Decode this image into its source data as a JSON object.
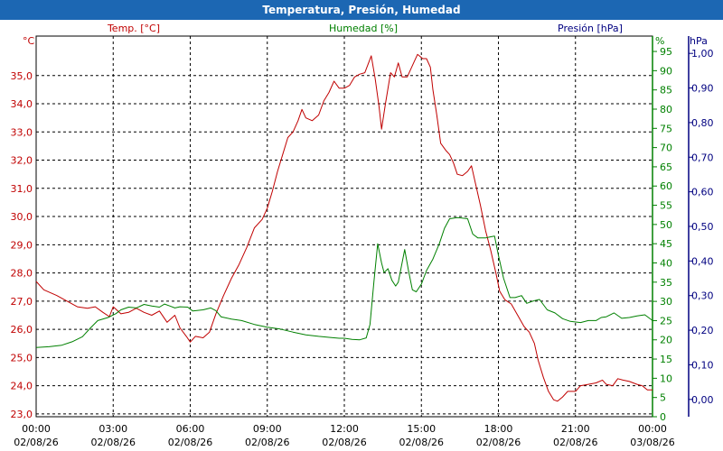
{
  "window": {
    "title": "Temperatura, Presión, Humedad"
  },
  "chart_data": {
    "type": "line",
    "title": "Temperatura, Presión, Humedad",
    "x_ticks": [
      {
        "time": "00:00",
        "date": "02/08/26"
      },
      {
        "time": "03:00",
        "date": "02/08/26"
      },
      {
        "time": "06:00",
        "date": "02/08/26"
      },
      {
        "time": "09:00",
        "date": "02/08/26"
      },
      {
        "time": "12:00",
        "date": "02/08/26"
      },
      {
        "time": "15:00",
        "date": "02/08/26"
      },
      {
        "time": "18:00",
        "date": "02/08/26"
      },
      {
        "time": "21:00",
        "date": "02/08/26"
      },
      {
        "time": "00:00",
        "date": "03/08/26"
      }
    ],
    "x_range_hours": [
      0,
      24
    ],
    "grid": true,
    "axes": {
      "temp": {
        "label": "Temp. [°C]",
        "unit": "°C",
        "range": [
          22.9,
          36.4
        ],
        "ticks": [
          "23,0",
          "24,0",
          "25,0",
          "26,0",
          "27,0",
          "28,0",
          "29,0",
          "30,0",
          "31,0",
          "32,0",
          "33,0",
          "34,0",
          "35,0"
        ],
        "color": "#c00000"
      },
      "hum": {
        "label": "Humedad [%]",
        "unit": "%",
        "range": [
          0,
          99
        ],
        "ticks": [
          "0",
          "5",
          "10",
          "15",
          "20",
          "25",
          "30",
          "35",
          "40",
          "45",
          "50",
          "55",
          "60",
          "65",
          "70",
          "75",
          "80",
          "85",
          "90",
          "95"
        ],
        "color": "#008000"
      },
      "pres": {
        "label": "Presión [hPa]",
        "unit": "hPa",
        "range": [
          -0.05,
          1.05
        ],
        "ticks": [
          "0,00",
          "0,10",
          "0,20",
          "0,30",
          "0,40",
          "0,50",
          "0,60",
          "0,70",
          "0,80",
          "0,90",
          "1,00"
        ],
        "color": "#000080"
      }
    },
    "series": [
      {
        "name": "Temp. [°C]",
        "axis": "temp",
        "color": "#c00000",
        "points": [
          [
            0,
            27.7
          ],
          [
            0.3,
            27.4
          ],
          [
            0.8,
            27.2
          ],
          [
            1.2,
            27.0
          ],
          [
            1.6,
            26.8
          ],
          [
            2.0,
            26.75
          ],
          [
            2.3,
            26.8
          ],
          [
            2.6,
            26.6
          ],
          [
            2.85,
            26.45
          ],
          [
            3.0,
            26.8
          ],
          [
            3.3,
            26.55
          ],
          [
            3.6,
            26.6
          ],
          [
            3.9,
            26.75
          ],
          [
            4.2,
            26.6
          ],
          [
            4.5,
            26.5
          ],
          [
            4.8,
            26.65
          ],
          [
            5.1,
            26.25
          ],
          [
            5.4,
            26.5
          ],
          [
            5.6,
            26.05
          ],
          [
            5.85,
            25.75
          ],
          [
            6.0,
            25.55
          ],
          [
            6.2,
            25.75
          ],
          [
            6.5,
            25.7
          ],
          [
            6.75,
            25.9
          ],
          [
            7.0,
            26.55
          ],
          [
            7.3,
            27.2
          ],
          [
            7.6,
            27.8
          ],
          [
            7.9,
            28.3
          ],
          [
            8.2,
            28.9
          ],
          [
            8.5,
            29.6
          ],
          [
            8.8,
            29.9
          ],
          [
            9.0,
            30.3
          ],
          [
            9.2,
            30.9
          ],
          [
            9.4,
            31.6
          ],
          [
            9.6,
            32.2
          ],
          [
            9.8,
            32.8
          ],
          [
            10.0,
            33.0
          ],
          [
            10.2,
            33.4
          ],
          [
            10.35,
            33.8
          ],
          [
            10.5,
            33.5
          ],
          [
            10.75,
            33.4
          ],
          [
            11.0,
            33.6
          ],
          [
            11.2,
            34.1
          ],
          [
            11.4,
            34.4
          ],
          [
            11.6,
            34.8
          ],
          [
            11.8,
            34.55
          ],
          [
            12.0,
            34.55
          ],
          [
            12.2,
            34.65
          ],
          [
            12.4,
            34.95
          ],
          [
            12.6,
            35.05
          ],
          [
            12.8,
            35.1
          ],
          [
            13.05,
            35.7
          ],
          [
            13.2,
            34.9
          ],
          [
            13.35,
            33.9
          ],
          [
            13.45,
            33.1
          ],
          [
            13.6,
            34.0
          ],
          [
            13.8,
            35.1
          ],
          [
            13.95,
            34.95
          ],
          [
            14.1,
            35.45
          ],
          [
            14.25,
            34.95
          ],
          [
            14.45,
            34.95
          ],
          [
            14.7,
            35.45
          ],
          [
            14.85,
            35.75
          ],
          [
            15.05,
            35.6
          ],
          [
            15.2,
            35.6
          ],
          [
            15.35,
            35.3
          ],
          [
            15.45,
            34.5
          ],
          [
            15.6,
            33.6
          ],
          [
            15.75,
            32.6
          ],
          [
            15.95,
            32.35
          ],
          [
            16.1,
            32.2
          ],
          [
            16.25,
            31.9
          ],
          [
            16.4,
            31.5
          ],
          [
            16.6,
            31.45
          ],
          [
            16.8,
            31.6
          ],
          [
            16.95,
            31.8
          ],
          [
            17.1,
            31.2
          ],
          [
            17.3,
            30.4
          ],
          [
            17.5,
            29.5
          ],
          [
            17.7,
            28.8
          ],
          [
            17.9,
            28.0
          ],
          [
            18.05,
            27.35
          ],
          [
            18.25,
            27.05
          ],
          [
            18.5,
            26.9
          ],
          [
            18.75,
            26.5
          ],
          [
            19.0,
            26.1
          ],
          [
            19.2,
            25.9
          ],
          [
            19.4,
            25.5
          ],
          [
            19.55,
            24.9
          ],
          [
            19.75,
            24.3
          ],
          [
            19.95,
            23.8
          ],
          [
            20.15,
            23.5
          ],
          [
            20.3,
            23.45
          ],
          [
            20.5,
            23.6
          ],
          [
            20.7,
            23.8
          ],
          [
            21.0,
            23.8
          ],
          [
            21.2,
            24.0
          ],
          [
            21.5,
            24.05
          ],
          [
            21.8,
            24.1
          ],
          [
            22.05,
            24.2
          ],
          [
            22.2,
            24.05
          ],
          [
            22.45,
            24.0
          ],
          [
            22.65,
            24.25
          ],
          [
            22.85,
            24.2
          ],
          [
            23.1,
            24.15
          ],
          [
            23.4,
            24.05
          ],
          [
            23.6,
            24.0
          ],
          [
            23.8,
            23.85
          ],
          [
            24.0,
            23.85
          ]
        ]
      },
      {
        "name": "Humedad [%]",
        "axis": "hum",
        "color": "#008000",
        "points": [
          [
            0,
            18.0
          ],
          [
            0.5,
            18.2
          ],
          [
            1.0,
            18.6
          ],
          [
            1.4,
            19.5
          ],
          [
            1.8,
            20.8
          ],
          [
            2.1,
            23.0
          ],
          [
            2.4,
            25.0
          ],
          [
            2.8,
            25.8
          ],
          [
            3.1,
            26.8
          ],
          [
            3.3,
            27.8
          ],
          [
            3.6,
            28.5
          ],
          [
            3.9,
            28.3
          ],
          [
            4.2,
            29.2
          ],
          [
            4.5,
            28.8
          ],
          [
            4.8,
            28.5
          ],
          [
            5.0,
            29.3
          ],
          [
            5.2,
            28.8
          ],
          [
            5.4,
            28.3
          ],
          [
            5.6,
            28.6
          ],
          [
            5.9,
            28.5
          ],
          [
            6.1,
            27.5
          ],
          [
            6.5,
            27.8
          ],
          [
            6.8,
            28.3
          ],
          [
            7.0,
            27.6
          ],
          [
            7.2,
            26.0
          ],
          [
            7.6,
            25.4
          ],
          [
            8.0,
            25.0
          ],
          [
            8.5,
            24.0
          ],
          [
            9.0,
            23.3
          ],
          [
            9.5,
            22.8
          ],
          [
            10.0,
            22.0
          ],
          [
            10.5,
            21.3
          ],
          [
            11.0,
            20.9
          ],
          [
            11.5,
            20.6
          ],
          [
            11.8,
            20.4
          ],
          [
            12.0,
            20.4
          ],
          [
            12.3,
            20.1
          ],
          [
            12.6,
            20.0
          ],
          [
            12.85,
            20.5
          ],
          [
            13.0,
            24.0
          ],
          [
            13.15,
            35.0
          ],
          [
            13.3,
            45.0
          ],
          [
            13.45,
            40.0
          ],
          [
            13.55,
            37.5
          ],
          [
            13.7,
            38.5
          ],
          [
            13.85,
            35.5
          ],
          [
            14.0,
            34.0
          ],
          [
            14.1,
            35.0
          ],
          [
            14.25,
            40.0
          ],
          [
            14.35,
            43.5
          ],
          [
            14.5,
            38.0
          ],
          [
            14.65,
            33.0
          ],
          [
            14.8,
            32.5
          ],
          [
            15.0,
            34.5
          ],
          [
            15.2,
            38.0
          ],
          [
            15.45,
            41.0
          ],
          [
            15.7,
            45.0
          ],
          [
            15.9,
            49.0
          ],
          [
            16.1,
            51.5
          ],
          [
            16.4,
            51.8
          ],
          [
            16.8,
            51.5
          ],
          [
            17.0,
            47.5
          ],
          [
            17.2,
            46.5
          ],
          [
            17.5,
            46.5
          ],
          [
            17.7,
            46.8
          ],
          [
            17.85,
            47.0
          ],
          [
            18.0,
            42.0
          ],
          [
            18.2,
            36.0
          ],
          [
            18.45,
            31.0
          ],
          [
            18.65,
            31.0
          ],
          [
            18.9,
            31.5
          ],
          [
            19.1,
            29.5
          ],
          [
            19.4,
            30.2
          ],
          [
            19.6,
            30.5
          ],
          [
            19.9,
            27.8
          ],
          [
            20.2,
            27.0
          ],
          [
            20.5,
            25.5
          ],
          [
            20.8,
            24.8
          ],
          [
            21.2,
            24.5
          ],
          [
            21.5,
            25.0
          ],
          [
            21.8,
            25.0
          ],
          [
            22.0,
            25.8
          ],
          [
            22.2,
            26.0
          ],
          [
            22.5,
            27.0
          ],
          [
            22.8,
            25.6
          ],
          [
            23.1,
            25.8
          ],
          [
            23.4,
            26.2
          ],
          [
            23.7,
            26.5
          ],
          [
            24.0,
            25.0
          ]
        ]
      }
    ]
  }
}
